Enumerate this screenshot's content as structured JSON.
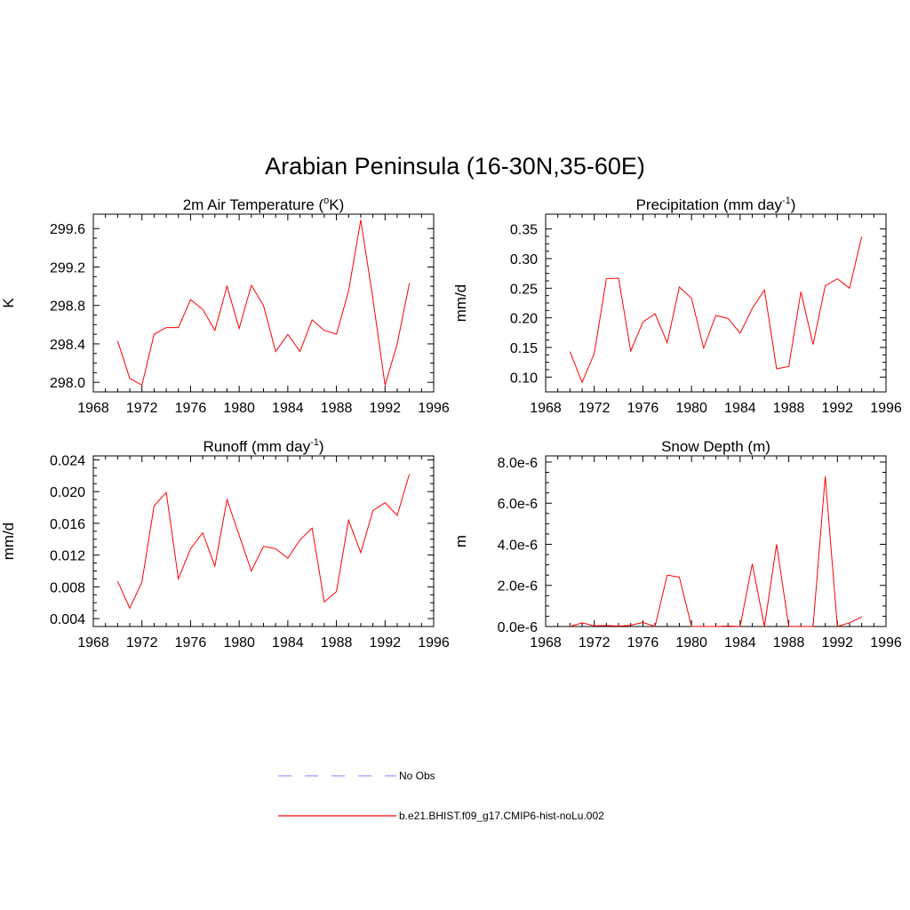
{
  "main_title": "Arabian Peninsula (16-30N,35-60E)",
  "colors": {
    "series": "#ff0000",
    "obs": "#9999ff",
    "axis": "#000000"
  },
  "legend": [
    {
      "label": "No Obs",
      "style": "dashed",
      "color": "#9999ff"
    },
    {
      "label": "b.e21.BHIST.f09_g17.CMIP6-hist-noLu.002",
      "style": "solid",
      "color": "#ff0000"
    }
  ],
  "chart_data": [
    {
      "type": "line",
      "title": "2m Air Temperature (",
      "title_sup": "o",
      "title_tail": "K)",
      "ylabel": "K",
      "xlim": [
        1968,
        1996
      ],
      "ylim": [
        297.9,
        299.75
      ],
      "xticks": [
        1968,
        1972,
        1976,
        1980,
        1984,
        1988,
        1992,
        1996
      ],
      "yticks": [
        298.0,
        298.4,
        298.8,
        299.2,
        299.6
      ],
      "ytick_labels": [
        "298.0",
        "298.4",
        "298.8",
        "299.2",
        "299.6"
      ],
      "x": [
        1970,
        1971,
        1972,
        1973,
        1974,
        1975,
        1976,
        1977,
        1978,
        1979,
        1980,
        1981,
        1982,
        1983,
        1984,
        1985,
        1986,
        1987,
        1988,
        1989,
        1990,
        1991,
        1992,
        1993,
        1994
      ],
      "series": [
        {
          "values": [
            298.43,
            298.04,
            297.97,
            298.5,
            298.57,
            298.57,
            298.86,
            298.76,
            298.54,
            299.0,
            298.56,
            299.01,
            298.8,
            298.32,
            298.5,
            298.32,
            298.65,
            298.54,
            298.5,
            298.95,
            299.69,
            298.87,
            297.97,
            298.4,
            299.03
          ]
        }
      ]
    },
    {
      "type": "line",
      "title": "Precipitation (mm day",
      "title_sup": "-1",
      "title_tail": ")",
      "ylabel": "mm/d",
      "xlim": [
        1968,
        1996
      ],
      "ylim": [
        0.075,
        0.375
      ],
      "xticks": [
        1968,
        1972,
        1976,
        1980,
        1984,
        1988,
        1992,
        1996
      ],
      "yticks": [
        0.1,
        0.15,
        0.2,
        0.25,
        0.3,
        0.35
      ],
      "ytick_labels": [
        "0.10",
        "0.15",
        "0.20",
        "0.25",
        "0.30",
        "0.35"
      ],
      "x": [
        1970,
        1971,
        1972,
        1973,
        1974,
        1975,
        1976,
        1977,
        1978,
        1979,
        1980,
        1981,
        1982,
        1983,
        1984,
        1985,
        1986,
        1987,
        1988,
        1989,
        1990,
        1991,
        1992,
        1993,
        1994
      ],
      "series": [
        {
          "values": [
            0.143,
            0.091,
            0.14,
            0.266,
            0.267,
            0.144,
            0.193,
            0.207,
            0.158,
            0.252,
            0.233,
            0.149,
            0.204,
            0.199,
            0.174,
            0.216,
            0.247,
            0.114,
            0.118,
            0.244,
            0.155,
            0.254,
            0.266,
            0.25,
            0.337
          ]
        }
      ]
    },
    {
      "type": "line",
      "title": "Runoff (mm day",
      "title_sup": "-1",
      "title_tail": ")",
      "ylabel": "mm/d",
      "xlim": [
        1968,
        1996
      ],
      "ylim": [
        0.003,
        0.0245
      ],
      "xticks": [
        1968,
        1972,
        1976,
        1980,
        1984,
        1988,
        1992,
        1996
      ],
      "yticks": [
        0.004,
        0.008,
        0.012,
        0.016,
        0.02,
        0.024
      ],
      "ytick_labels": [
        "0.004",
        "0.008",
        "0.012",
        "0.016",
        "0.020",
        "0.024"
      ],
      "x": [
        1970,
        1971,
        1972,
        1973,
        1974,
        1975,
        1976,
        1977,
        1978,
        1979,
        1980,
        1981,
        1982,
        1983,
        1984,
        1985,
        1986,
        1987,
        1988,
        1989,
        1990,
        1991,
        1992,
        1993,
        1994
      ],
      "series": [
        {
          "values": [
            0.0087,
            0.0053,
            0.0086,
            0.0182,
            0.0199,
            0.009,
            0.0128,
            0.0148,
            0.0106,
            0.019,
            0.0145,
            0.01,
            0.0131,
            0.0128,
            0.0116,
            0.0139,
            0.0154,
            0.0061,
            0.0074,
            0.0164,
            0.0123,
            0.0176,
            0.0186,
            0.017,
            0.0222
          ]
        }
      ]
    },
    {
      "type": "line",
      "title": "Snow Depth (m)",
      "title_sup": "",
      "title_tail": "",
      "ylabel": "m",
      "xlim": [
        1968,
        1996
      ],
      "ylim": [
        0,
        8.3e-06
      ],
      "xticks": [
        1968,
        1972,
        1976,
        1980,
        1984,
        1988,
        1992,
        1996
      ],
      "yticks": [
        0,
        2e-06,
        4e-06,
        6e-06,
        8e-06
      ],
      "ytick_labels": [
        "0.0e-6",
        "2.0e-6",
        "4.0e-6",
        "6.0e-6",
        "8.0e-6"
      ],
      "x": [
        1970,
        1971,
        1972,
        1973,
        1974,
        1975,
        1976,
        1977,
        1978,
        1979,
        1980,
        1981,
        1982,
        1983,
        1984,
        1985,
        1986,
        1987,
        1988,
        1989,
        1990,
        1991,
        1992,
        1993,
        1994
      ],
      "series": [
        {
          "values": [
            0,
            1.8e-07,
            3e-08,
            5e-08,
            2e-08,
            6e-08,
            2e-07,
            0,
            2.5e-06,
            2.4e-06,
            0,
            0,
            0,
            2e-08,
            0,
            3.05e-06,
            0,
            4e-06,
            0,
            0,
            0,
            7.3e-06,
            0,
            1.8e-07,
            4.7e-07
          ]
        }
      ]
    }
  ]
}
